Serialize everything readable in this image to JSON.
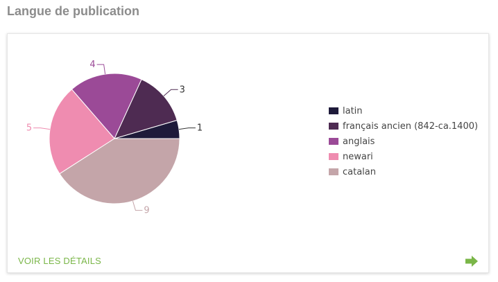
{
  "header": {
    "title": "Langue de publication"
  },
  "chart_data": {
    "type": "pie",
    "categories": [
      "latin",
      "français ancien (842-ca.1400)",
      "anglais",
      "newari",
      "catalan"
    ],
    "values": [
      1,
      3,
      4,
      5,
      9
    ],
    "colors": [
      "#1e1a3a",
      "#4e2b52",
      "#9b4a97",
      "#ef8cb0",
      "#c4a5a9"
    ],
    "legend_position": "right"
  },
  "footer": {
    "details_label": "VOIR LES DÉTAILS",
    "accent_color": "#7ab648",
    "arrow_icon": "arrow-right-icon"
  }
}
